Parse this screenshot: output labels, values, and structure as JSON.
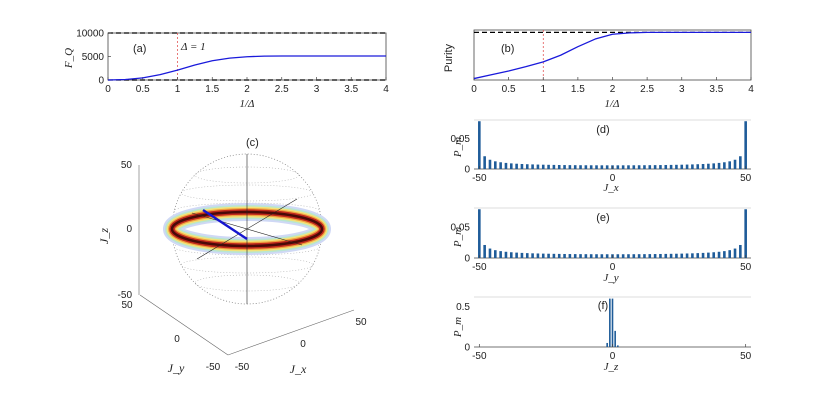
{
  "chart_data": [
    {
      "panel": "(a)",
      "type": "line",
      "xlabel": "1/Δ",
      "ylabel": "F_Q",
      "annotation": "Δ = 1",
      "xlim": [
        0,
        4
      ],
      "ylim": [
        0,
        10000
      ],
      "xticks": [
        "0",
        "0.5",
        "1",
        "1.5",
        "2",
        "2.5",
        "3",
        "3.5",
        "4"
      ],
      "yticks": [
        "0",
        "5000",
        "10000"
      ],
      "reference_lines": [
        0,
        10000
      ],
      "marker_x": 1,
      "series": [
        {
          "x": [
            0,
            0.25,
            0.5,
            0.75,
            1.0,
            1.25,
            1.5,
            1.75,
            2.0,
            2.25,
            2.5,
            3.0,
            3.5,
            4.0
          ],
          "values": [
            0,
            100,
            450,
            1150,
            2100,
            3200,
            4100,
            4650,
            4950,
            5080,
            5100,
            5100,
            5100,
            5100
          ]
        }
      ]
    },
    {
      "panel": "(b)",
      "type": "line",
      "xlabel": "1/Δ",
      "ylabel": "Purity",
      "xlim": [
        0,
        4
      ],
      "ylim": [
        0,
        1.05
      ],
      "xticks": [
        "0",
        "0.5",
        "1",
        "1.5",
        "2",
        "2.5",
        "3",
        "3.5",
        "4"
      ],
      "reference_lines": [
        1
      ],
      "marker_x": 1,
      "series": [
        {
          "x": [
            0,
            0.25,
            0.5,
            0.75,
            1.0,
            1.25,
            1.5,
            1.75,
            2.0,
            2.25,
            2.5,
            3.0,
            3.5,
            4.0
          ],
          "values": [
            0.03,
            0.11,
            0.19,
            0.28,
            0.38,
            0.52,
            0.7,
            0.86,
            0.96,
            0.99,
            1.0,
            1.0,
            1.0,
            1.0
          ]
        }
      ]
    },
    {
      "panel": "(c)",
      "type": "other",
      "description_axes": true,
      "zlabel": "J_z",
      "xlabel": "J_x",
      "ylabel": "J_y",
      "zticks": [
        "50",
        "0",
        "-50"
      ],
      "yticks": [
        "50",
        "0",
        "-50"
      ],
      "xticks": [
        "-50",
        "0",
        "50"
      ]
    },
    {
      "panel": "(d)",
      "type": "bar",
      "xlabel": "J_x",
      "ylabel": "P_m",
      "xlim": [
        -52,
        52
      ],
      "ylim": [
        0,
        0.08
      ],
      "xticks": [
        "-50",
        "0",
        "50"
      ],
      "yticks": [
        "0",
        "0.05"
      ],
      "distribution": "arcsine",
      "m_range": [
        -50,
        50
      ],
      "values_step": 2,
      "edge_value": 0.078,
      "center_value": 0.006
    },
    {
      "panel": "(e)",
      "type": "bar",
      "xlabel": "J_y",
      "ylabel": "P_m",
      "xlim": [
        -52,
        52
      ],
      "ylim": [
        0,
        0.08
      ],
      "xticks": [
        "-50",
        "0",
        "50"
      ],
      "yticks": [
        "0",
        "0.05"
      ],
      "distribution": "arcsine",
      "m_range": [
        -50,
        50
      ],
      "values_step": 2,
      "edge_value": 0.078,
      "center_value": 0.006
    },
    {
      "panel": "(f)",
      "type": "bar",
      "xlabel": "J_z",
      "ylabel": "P_m",
      "xlim": [
        -52,
        52
      ],
      "ylim": [
        0,
        0.62
      ],
      "xticks": [
        "-50",
        "0",
        "50"
      ],
      "yticks": [
        "0",
        "0.5"
      ],
      "categories": [
        -2,
        -1,
        0,
        1,
        2
      ],
      "values": [
        0.05,
        0.6,
        0.6,
        0.2,
        0.02
      ]
    }
  ]
}
